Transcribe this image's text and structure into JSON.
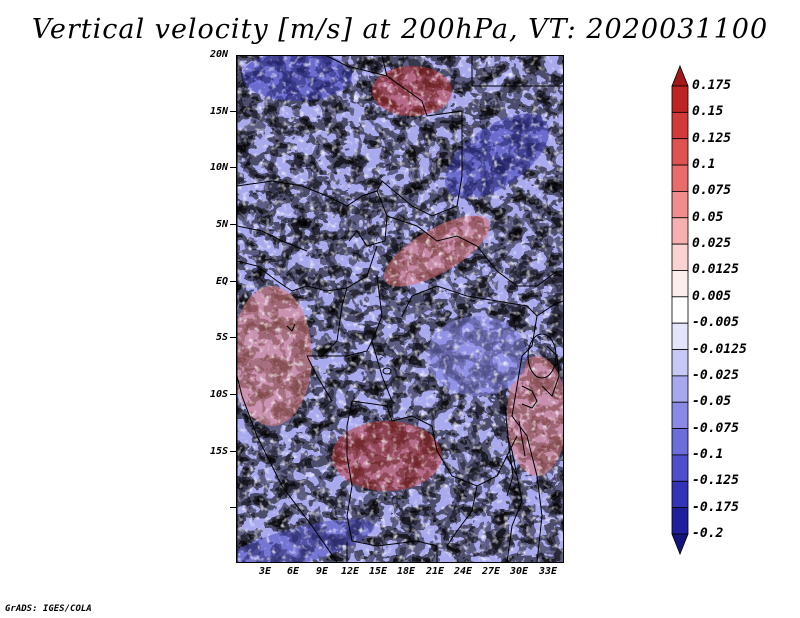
{
  "title": "Vertical velocity [m/s] at 200hPa, VT: 2020031100",
  "credit": "GrADS: IGES/COLA",
  "lat_labels": [
    "20N",
    "15N",
    "10N",
    "5N",
    "EQ",
    "5S",
    "10S",
    "15S"
  ],
  "lon_labels": [
    "3E",
    "6E",
    "9E",
    "12E",
    "15E",
    "18E",
    "21E",
    "24E",
    "27E",
    "30E",
    "33E"
  ],
  "colorbar": {
    "labels": [
      "0.175",
      "0.15",
      "0.125",
      "0.1",
      "0.075",
      "0.05",
      "0.025",
      "0.0125",
      "0.005",
      "-0.005",
      "-0.0125",
      "-0.025",
      "-0.05",
      "-0.075",
      "-0.1",
      "-0.125",
      "-0.175",
      "-0.2"
    ],
    "colors": [
      "#a01818",
      "#be2424",
      "#d23a3a",
      "#df5252",
      "#e86c6c",
      "#f08d8d",
      "#f6b0b0",
      "#fad2d2",
      "#fdeeee",
      "#ffffff",
      "#e4e4fb",
      "#c8c8f6",
      "#a8a8ef",
      "#8a8ae6",
      "#6c6cdb",
      "#4f4fcc",
      "#3333b8",
      "#1f1f9e",
      "#14147e"
    ]
  },
  "colors": {
    "warm": "#e06868",
    "cool": "#6868d8",
    "border": "#000000"
  }
}
